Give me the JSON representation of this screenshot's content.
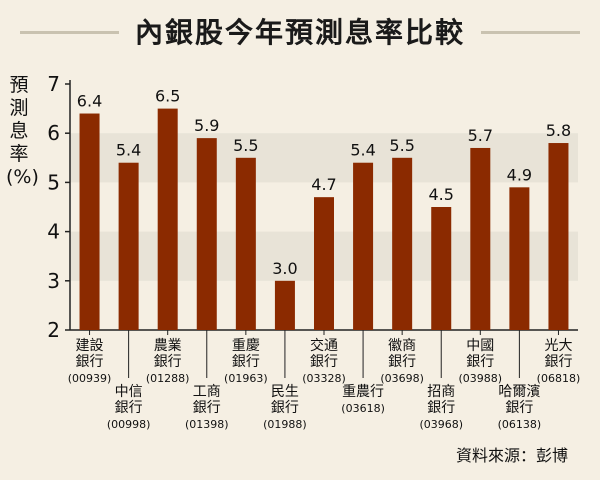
{
  "page": {
    "title": "內銀股今年預測息率比較",
    "source": "資料來源：彭博"
  },
  "colors": {
    "bar": "#8b2a00",
    "band": "#e8e3d7",
    "background": "#f5efe3"
  },
  "chart_data": {
    "type": "bar",
    "title": "內銀股今年預測息率比較",
    "ylabel": "預測息率(%)",
    "xlabel": "",
    "ylim": [
      2,
      7
    ],
    "yticks": [
      2,
      3,
      4,
      5,
      6,
      7
    ],
    "grid": "alternating horizontal bands",
    "categories": [
      [
        "建設",
        "銀行",
        "(00939)"
      ],
      [
        "中信",
        "銀行",
        "(00998)"
      ],
      [
        "農業",
        "銀行",
        "(01288)"
      ],
      [
        "工商",
        "銀行",
        "(01398)"
      ],
      [
        "重慶",
        "銀行",
        "(01963)"
      ],
      [
        "民生",
        "銀行",
        "(01988)"
      ],
      [
        "交通",
        "銀行",
        "(03328)"
      ],
      [
        "重農行",
        "(03618)"
      ],
      [
        "徽商",
        "銀行",
        "(03698)"
      ],
      [
        "招商",
        "銀行",
        "(03968)"
      ],
      [
        "中國",
        "銀行",
        "(03988)"
      ],
      [
        "哈爾濱",
        "銀行",
        "(06138)"
      ],
      [
        "光大",
        "銀行",
        "(06818)"
      ]
    ],
    "values": [
      6.4,
      5.4,
      6.5,
      5.9,
      5.5,
      3.0,
      4.7,
      5.4,
      5.5,
      4.5,
      5.7,
      4.9,
      5.8
    ],
    "value_labels": [
      "6.4",
      "5.4",
      "6.5",
      "5.9",
      "5.5",
      "3.0",
      "4.7",
      "5.4",
      "5.5",
      "4.5",
      "5.7",
      "4.9",
      "5.8"
    ]
  }
}
